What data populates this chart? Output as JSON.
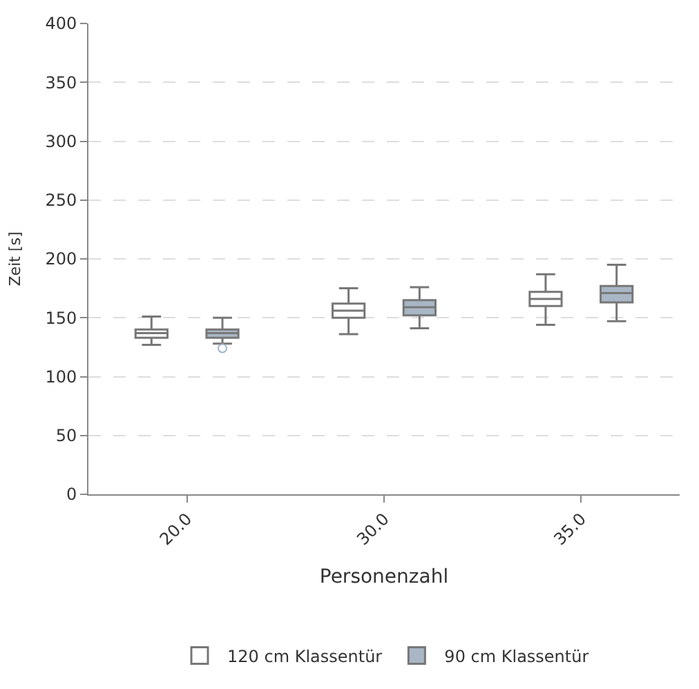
{
  "chart_data": {
    "type": "box",
    "xlabel": "Personenzahl",
    "ylabel": "Zeit [s]",
    "categories": [
      "20.0",
      "30.0",
      "35.0"
    ],
    "ylim": [
      0,
      400
    ],
    "yticks": [
      0,
      50,
      100,
      150,
      200,
      250,
      300,
      350,
      400
    ],
    "grid": "y",
    "legend": "bottom",
    "series": [
      {
        "name": "120 cm Klassentür",
        "color": "#ffffff",
        "boxes": [
          {
            "low": 127,
            "q1": 133,
            "median": 137,
            "q3": 140,
            "high": 151
          },
          {
            "low": 136,
            "q1": 150,
            "median": 156,
            "q3": 162,
            "high": 175
          },
          {
            "low": 144,
            "q1": 160,
            "median": 166,
            "q3": 172,
            "high": 187
          }
        ]
      },
      {
        "name": "90 cm Klassentür",
        "color": "#a9b6c6",
        "boxes": [
          {
            "low": 128,
            "q1": 133,
            "median": 137,
            "q3": 140,
            "high": 150,
            "outliers": [
              124
            ]
          },
          {
            "low": 141,
            "q1": 152,
            "median": 159,
            "q3": 165,
            "high": 176
          },
          {
            "low": 147,
            "q1": 163,
            "median": 171,
            "q3": 177,
            "high": 195
          }
        ]
      }
    ]
  }
}
